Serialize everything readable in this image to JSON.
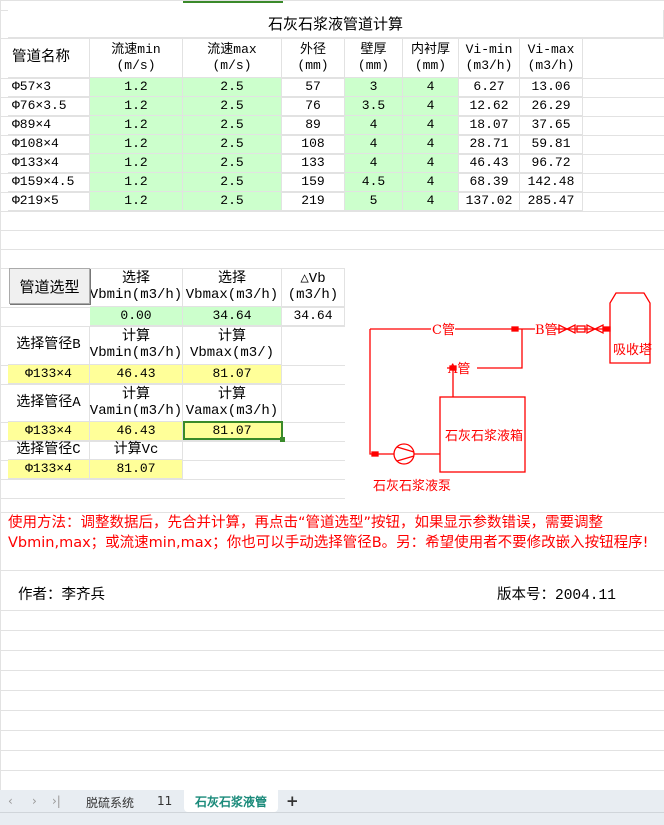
{
  "title": "石灰石浆液管道计算",
  "table": {
    "headers": [
      "管道名称",
      "流速min\n(m/s)",
      "流速max\n(m/s)",
      "外径\n(mm)",
      "壁厚\n(mm)",
      "内衬厚\n(mm)",
      "Vi-min\n(m3/h)",
      "Vi-max\n(m3/h)"
    ],
    "rows": [
      [
        "Φ57×3",
        "1.2",
        "2.5",
        "57",
        "3",
        "4",
        "6.27",
        "13.06"
      ],
      [
        "Φ76×3.5",
        "1.2",
        "2.5",
        "76",
        "3.5",
        "4",
        "12.62",
        "26.29"
      ],
      [
        "Φ89×4",
        "1.2",
        "2.5",
        "89",
        "4",
        "4",
        "18.07",
        "37.65"
      ],
      [
        "Φ108×4",
        "1.2",
        "2.5",
        "108",
        "4",
        "4",
        "28.71",
        "59.81"
      ],
      [
        "Φ133×4",
        "1.2",
        "2.5",
        "133",
        "4",
        "4",
        "46.43",
        "96.72"
      ],
      [
        "Φ159×4.5",
        "1.2",
        "2.5",
        "159",
        "4.5",
        "4",
        "68.39",
        "142.48"
      ],
      [
        "Φ219×5",
        "1.2",
        "2.5",
        "219",
        "5",
        "4",
        "137.02",
        "285.47"
      ]
    ]
  },
  "selection": {
    "button_label": "管道选型",
    "sel_vbmin_label": "选择\nVbmin(m3/h)",
    "sel_vbmax_label": "选择\nVbmax(m3/h)",
    "delta_vb_label": "△Vb\n(m3/h)",
    "sel_vbmin": "0.00",
    "sel_vbmax": "34.64",
    "delta_vb": "34.64",
    "pipe_b_label": "选择管径B",
    "calc_vbmin_label": "计算\nVbmin(m3/h)",
    "calc_vbmax_label": "计算\nVbmax(m3/)",
    "pipe_b": "Φ133×4",
    "calc_vbmin": "46.43",
    "calc_vbmax": "81.07",
    "pipe_a_label": "选择管径A",
    "calc_vamin_label": "计算\nVamin(m3/h)",
    "calc_vamax_label": "计算\nVamax(m3/h)",
    "pipe_a": "Φ133×4",
    "calc_vamin": "46.43",
    "calc_vamax": "81.07",
    "pipe_c_label": "选择管径C",
    "calc_vc_label": "计算Vc",
    "pipe_c": "Φ133×4",
    "calc_vc": "81.07"
  },
  "diagram": {
    "c_pipe": "C管",
    "b_pipe": "B管",
    "a_pipe": "A管",
    "tower": "吸收塔",
    "tank": "石灰石浆液箱",
    "pump": "石灰石浆液泵",
    "color": "#ff0000"
  },
  "note": "使用方法：调整数据后，先合并计算，再点击“管道选型”按钮，如果显示参数错误，需要调整Vbmin,max；或流速min,max；你也可以手动选择管径B。另：希望使用者不要修改嵌入按钮程序!",
  "author": "作者：李齐兵",
  "version": "版本号：2004.11",
  "sheet_tabs": [
    "脱硫系统",
    "11",
    "石灰石浆液管"
  ],
  "active_tab": "石灰石浆液管",
  "colors": {
    "input_green": "#ccffcc",
    "result_yellow": "#ffff99",
    "selection": "#3a8a2a",
    "active_tab": "#1a8a7a"
  }
}
